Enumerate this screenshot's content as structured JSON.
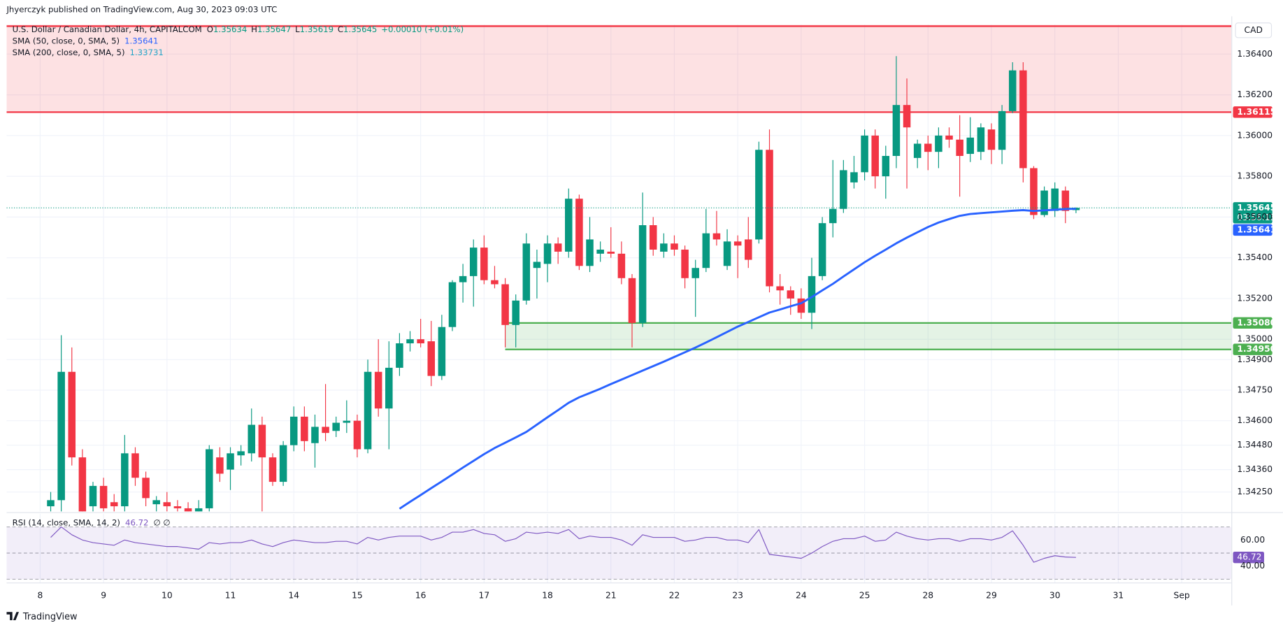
{
  "chart_data": {
    "type": "candlestick",
    "header": "Jhyerczyk published on TradingView.com, Aug 30, 2023 09:03 UTC",
    "title": "U.S. Dollar / Canadian Dollar, 4h, CAPITALCOM",
    "ohlc_letters": [
      "O",
      "H",
      "L",
      "C"
    ],
    "change": "+0.00010 (+0.01%)",
    "currency": "CAD",
    "countdown": "03:56:15",
    "branding": "TradingView",
    "up_color": "#089981",
    "down_color": "#f23645",
    "grid": true,
    "xlim": [
      -3.17,
      112.7
    ],
    "xticks": [
      {
        "value": 0,
        "label": "8"
      },
      {
        "value": 6,
        "label": "9"
      },
      {
        "value": 12,
        "label": "10"
      },
      {
        "value": 18,
        "label": "11"
      },
      {
        "value": 24,
        "label": "14"
      },
      {
        "value": 30,
        "label": "15"
      },
      {
        "value": 36,
        "label": "16"
      },
      {
        "value": 42,
        "label": "17"
      },
      {
        "value": 48,
        "label": "18"
      },
      {
        "value": 54,
        "label": "21"
      },
      {
        "value": 60,
        "label": "22"
      },
      {
        "value": 66,
        "label": "23"
      },
      {
        "value": 72,
        "label": "24"
      },
      {
        "value": 78,
        "label": "25"
      },
      {
        "value": 84,
        "label": "28"
      },
      {
        "value": 90,
        "label": "29"
      },
      {
        "value": 96,
        "label": "30"
      },
      {
        "value": 102,
        "label": "31"
      },
      {
        "value": 108,
        "label": "Sep"
      }
    ],
    "ylim": [
      1.34155,
      1.36545
    ],
    "yticks": [
      {
        "value": 1.364,
        "label": "1.36400"
      },
      {
        "value": 1.362,
        "label": "1.36200"
      },
      {
        "value": 1.36,
        "label": "1.36000"
      },
      {
        "value": 1.358,
        "label": "1.35800"
      },
      {
        "value": 1.356,
        "label": "1.35600"
      },
      {
        "value": 1.354,
        "label": "1.35400"
      },
      {
        "value": 1.352,
        "label": "1.35200"
      },
      {
        "value": 1.35,
        "label": "1.35000"
      },
      {
        "value": 1.349,
        "label": "1.34900"
      },
      {
        "value": 1.3475,
        "label": "1.34750"
      },
      {
        "value": 1.346,
        "label": "1.34600"
      },
      {
        "value": 1.3448,
        "label": "1.34480"
      },
      {
        "value": 1.3436,
        "label": "1.34360"
      },
      {
        "value": 1.3425,
        "label": "1.34250"
      }
    ],
    "x": [
      1,
      2,
      3,
      4,
      5,
      6,
      7,
      8,
      9,
      10,
      11,
      12,
      13,
      14,
      15,
      16,
      17,
      18,
      19,
      20,
      21,
      22,
      23,
      24,
      25,
      26,
      27,
      28,
      29,
      30,
      31,
      32,
      33,
      34,
      35,
      36,
      37,
      38,
      39,
      40,
      41,
      42,
      43,
      44,
      45,
      46,
      47,
      48,
      49,
      50,
      51,
      52,
      53,
      54,
      55,
      56,
      57,
      58,
      59,
      60,
      61,
      62,
      63,
      64,
      65,
      66,
      67,
      68,
      69,
      70,
      71,
      72,
      73,
      74,
      75,
      76,
      77,
      78,
      79,
      80,
      81,
      82,
      83,
      84,
      85,
      86,
      87,
      88,
      89,
      90,
      91,
      92,
      93,
      94,
      95,
      96,
      97,
      98
    ],
    "candles": [
      [
        1.3418,
        1.3425,
        1.3412,
        1.3421
      ],
      [
        1.3421,
        1.3502,
        1.3412,
        1.3484
      ],
      [
        1.3484,
        1.3496,
        1.3438,
        1.3442
      ],
      [
        1.3442,
        1.3446,
        1.3405,
        1.341
      ],
      [
        1.3418,
        1.343,
        1.3414,
        1.3428
      ],
      [
        1.3428,
        1.3432,
        1.3412,
        1.3417
      ],
      [
        1.342,
        1.3424,
        1.341,
        1.3418
      ],
      [
        1.3418,
        1.3453,
        1.3414,
        1.3444
      ],
      [
        1.3444,
        1.3447,
        1.3428,
        1.3432
      ],
      [
        1.3432,
        1.3435,
        1.3418,
        1.3422
      ],
      [
        1.3419,
        1.3423,
        1.3414,
        1.3421
      ],
      [
        1.342,
        1.3425,
        1.3412,
        1.3418
      ],
      [
        1.3418,
        1.3421,
        1.3412,
        1.3417
      ],
      [
        1.3417,
        1.342,
        1.341,
        1.3415
      ],
      [
        1.3415,
        1.3421,
        1.341,
        1.3417
      ],
      [
        1.3417,
        1.3448,
        1.3414,
        1.3446
      ],
      [
        1.3442,
        1.3447,
        1.343,
        1.3434
      ],
      [
        1.3436,
        1.3447,
        1.3426,
        1.3444
      ],
      [
        1.3443,
        1.3448,
        1.3438,
        1.3445
      ],
      [
        1.3444,
        1.3466,
        1.344,
        1.3458
      ],
      [
        1.3458,
        1.3462,
        1.3415,
        1.3442
      ],
      [
        1.3442,
        1.3444,
        1.3428,
        1.343
      ],
      [
        1.343,
        1.345,
        1.3428,
        1.3448
      ],
      [
        1.3448,
        1.3467,
        1.3445,
        1.3462
      ],
      [
        1.3462,
        1.3467,
        1.3445,
        1.345
      ],
      [
        1.3449,
        1.3463,
        1.3437,
        1.3457
      ],
      [
        1.3457,
        1.3478,
        1.345,
        1.3454
      ],
      [
        1.3455,
        1.3462,
        1.3452,
        1.3459
      ],
      [
        1.3459,
        1.347,
        1.3454,
        1.346
      ],
      [
        1.346,
        1.3463,
        1.3442,
        1.3446
      ],
      [
        1.3446,
        1.349,
        1.3444,
        1.3484
      ],
      [
        1.3484,
        1.35,
        1.3462,
        1.3466
      ],
      [
        1.3466,
        1.3499,
        1.3446,
        1.3486
      ],
      [
        1.3486,
        1.3503,
        1.3482,
        1.3498
      ],
      [
        1.3498,
        1.3504,
        1.3494,
        1.35
      ],
      [
        1.35,
        1.351,
        1.3496,
        1.3498
      ],
      [
        1.3499,
        1.3509,
        1.3477,
        1.3482
      ],
      [
        1.3482,
        1.3512,
        1.348,
        1.3506
      ],
      [
        1.3506,
        1.3529,
        1.3504,
        1.3528
      ],
      [
        1.3528,
        1.3537,
        1.3518,
        1.3531
      ],
      [
        1.3531,
        1.3549,
        1.3516,
        1.3545
      ],
      [
        1.3545,
        1.3551,
        1.3527,
        1.3529
      ],
      [
        1.3529,
        1.3536,
        1.3525,
        1.3527
      ],
      [
        1.3527,
        1.353,
        1.3496,
        1.3507
      ],
      [
        1.3507,
        1.3522,
        1.3496,
        1.3519
      ],
      [
        1.3519,
        1.3552,
        1.3517,
        1.3547
      ],
      [
        1.3535,
        1.3544,
        1.352,
        1.3538
      ],
      [
        1.3537,
        1.3551,
        1.3528,
        1.3547
      ],
      [
        1.3547,
        1.355,
        1.3537,
        1.3543
      ],
      [
        1.3543,
        1.3574,
        1.354,
        1.3569
      ],
      [
        1.3569,
        1.3571,
        1.3534,
        1.3536
      ],
      [
        1.3536,
        1.356,
        1.3533,
        1.3549
      ],
      [
        1.3542,
        1.3548,
        1.3538,
        1.3544
      ],
      [
        1.3543,
        1.3555,
        1.354,
        1.3542
      ],
      [
        1.3542,
        1.3548,
        1.3527,
        1.353
      ],
      [
        1.353,
        1.3532,
        1.3496,
        1.3508
      ],
      [
        1.3508,
        1.3572,
        1.3506,
        1.3556
      ],
      [
        1.3556,
        1.356,
        1.3541,
        1.3544
      ],
      [
        1.3543,
        1.3552,
        1.354,
        1.3547
      ],
      [
        1.3547,
        1.3551,
        1.3541,
        1.3544
      ],
      [
        1.3544,
        1.3546,
        1.3525,
        1.353
      ],
      [
        1.353,
        1.3539,
        1.3511,
        1.3535
      ],
      [
        1.3535,
        1.3564,
        1.3533,
        1.3552
      ],
      [
        1.3552,
        1.3563,
        1.3546,
        1.3549
      ],
      [
        1.3536,
        1.3554,
        1.3534,
        1.3548
      ],
      [
        1.3548,
        1.3551,
        1.353,
        1.3546
      ],
      [
        1.3549,
        1.356,
        1.3535,
        1.3539
      ],
      [
        1.3549,
        1.3597,
        1.3547,
        1.3593
      ],
      [
        1.3593,
        1.3603,
        1.3523,
        1.3526
      ],
      [
        1.3526,
        1.3532,
        1.3517,
        1.3524
      ],
      [
        1.3524,
        1.3526,
        1.3512,
        1.352
      ],
      [
        1.352,
        1.3525,
        1.351,
        1.3513
      ],
      [
        1.3513,
        1.354,
        1.3505,
        1.3531
      ],
      [
        1.3531,
        1.356,
        1.3529,
        1.3557
      ],
      [
        1.3557,
        1.3588,
        1.355,
        1.3564
      ],
      [
        1.3564,
        1.3588,
        1.3562,
        1.3583
      ],
      [
        1.3577,
        1.359,
        1.3574,
        1.3582
      ],
      [
        1.3582,
        1.3603,
        1.3578,
        1.36
      ],
      [
        1.36,
        1.3603,
        1.3574,
        1.358
      ],
      [
        1.358,
        1.3595,
        1.3569,
        1.359
      ],
      [
        1.359,
        1.3639,
        1.3584,
        1.3615
      ],
      [
        1.3615,
        1.3628,
        1.3574,
        1.3604
      ],
      [
        1.3589,
        1.3598,
        1.3584,
        1.3596
      ],
      [
        1.3596,
        1.36,
        1.3583,
        1.3592
      ],
      [
        1.3592,
        1.3604,
        1.3584,
        1.36
      ],
      [
        1.36,
        1.3604,
        1.3594,
        1.3598
      ],
      [
        1.3598,
        1.361,
        1.357,
        1.359
      ],
      [
        1.3591,
        1.3609,
        1.3587,
        1.3599
      ],
      [
        1.3592,
        1.3606,
        1.3588,
        1.3604
      ],
      [
        1.3603,
        1.3606,
        1.3586,
        1.3593
      ],
      [
        1.3593,
        1.3615,
        1.3586,
        1.3612
      ],
      [
        1.3612,
        1.3636,
        1.3611,
        1.3632
      ],
      [
        1.3632,
        1.3636,
        1.3577,
        1.3584
      ],
      [
        1.3584,
        1.3585,
        1.3559,
        1.3561
      ],
      [
        1.3561,
        1.3575,
        1.356,
        1.3573
      ],
      [
        1.3563,
        1.3577,
        1.356,
        1.3574
      ],
      [
        1.3573,
        1.3575,
        1.3557,
        1.3563
      ],
      [
        1.35634,
        1.35647,
        1.35619,
        1.35645
      ]
    ],
    "series": [
      {
        "name": "SMA (50, close, 0, SMA, 5)",
        "color": "#2962ff",
        "values": [
          null,
          null,
          null,
          null,
          null,
          null,
          null,
          null,
          null,
          null,
          null,
          null,
          null,
          null,
          null,
          null,
          null,
          null,
          null,
          null,
          null,
          null,
          null,
          null,
          null,
          null,
          null,
          null,
          null,
          null,
          null,
          null,
          null,
          1.34168,
          1.34202,
          1.34235,
          1.34269,
          1.34302,
          1.34336,
          1.3437,
          1.34403,
          1.34436,
          1.34466,
          1.34492,
          1.34518,
          1.34545,
          1.34581,
          1.34617,
          1.34652,
          1.34688,
          1.34715,
          1.34736,
          1.34757,
          1.3478,
          1.34802,
          1.34824,
          1.34846,
          1.34868,
          1.3489,
          1.34913,
          1.34936,
          1.34959,
          1.34984,
          1.3501,
          1.35036,
          1.35062,
          1.35085,
          1.35108,
          1.35131,
          1.35146,
          1.35162,
          1.35177,
          1.35207,
          1.3524,
          1.35272,
          1.35308,
          1.35343,
          1.35378,
          1.3541,
          1.3544,
          1.35471,
          1.35499,
          1.35525,
          1.35551,
          1.35573,
          1.3559,
          1.35606,
          1.35615,
          1.35619,
          1.35623,
          1.35627,
          1.35631,
          1.35634,
          1.3563,
          1.35633,
          1.35636,
          1.35639,
          1.35641
        ]
      },
      {
        "name": "SMA (200, close, 0, SMA, 5)",
        "color": "#26a6c8",
        "value": 1.33731
      }
    ],
    "resistance": {
      "value": 1.36115,
      "color": "#f23645"
    },
    "support": {
      "values": [
        {
          "value": 1.3508,
          "label": "1.35080"
        },
        {
          "value": 1.3495,
          "label": "1.34950"
        }
      ],
      "start_x": 44,
      "color": "#4caf50"
    },
    "rsi": {
      "name": "RSI (14, close, SMA, 14, 2)",
      "extra": "∅ ∅",
      "color": "#7e57c2",
      "ylim": [
        27.5,
        80
      ],
      "yticks": [
        {
          "value": 60,
          "label": "60.00"
        },
        {
          "value": 40,
          "label": "40.00"
        }
      ],
      "levels": [
        70,
        50,
        30
      ],
      "values": [
        62,
        70,
        64,
        60,
        58,
        57,
        56,
        60,
        58,
        57,
        56,
        55,
        55,
        54,
        53,
        58,
        57,
        58,
        58,
        60,
        57,
        55,
        58,
        60,
        59,
        58,
        58,
        59,
        59,
        57,
        62,
        60,
        62,
        63,
        63,
        63,
        60,
        62,
        66,
        66,
        68,
        65,
        64,
        59,
        61,
        66,
        65,
        66,
        65,
        68,
        61,
        63,
        62,
        62,
        60,
        56,
        64,
        62,
        62,
        62,
        59,
        60,
        62,
        62,
        60,
        60,
        58,
        68,
        49,
        48,
        47,
        46,
        50,
        55,
        59,
        61,
        61,
        63,
        59,
        60,
        66,
        63,
        61,
        60,
        61,
        61,
        59,
        61,
        61,
        60,
        62,
        67,
        56,
        43,
        46,
        48,
        47,
        46.72
      ]
    }
  }
}
